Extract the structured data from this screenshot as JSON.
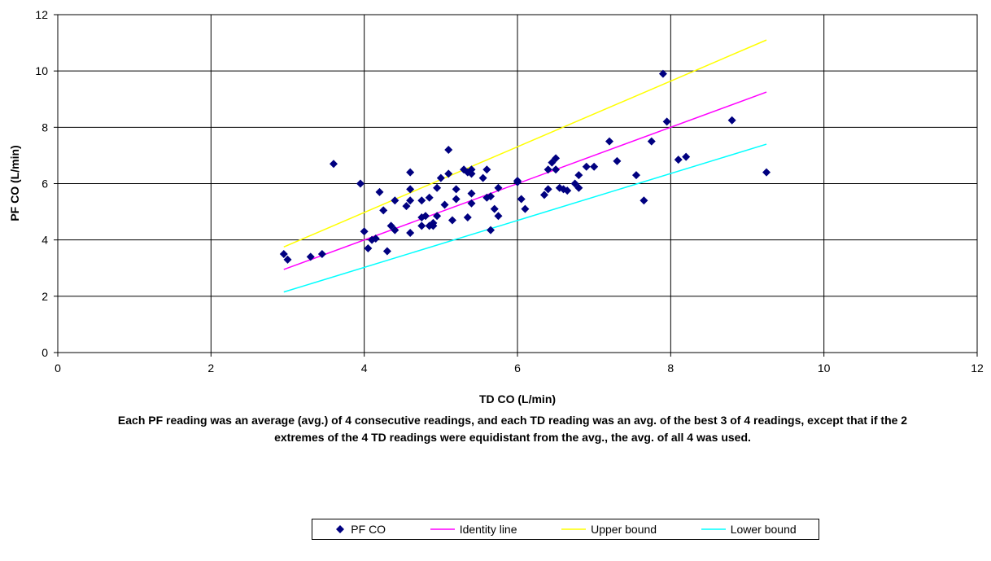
{
  "chart_data": {
    "type": "scatter",
    "title": "",
    "xlabel": "TD CO (L/min)",
    "ylabel": "PF CO (L/min)",
    "xlim": [
      0,
      12
    ],
    "ylim": [
      0,
      12
    ],
    "x_ticks": [
      "0",
      "2",
      "4",
      "6",
      "8",
      "10",
      "12"
    ],
    "y_ticks": [
      "0",
      "2",
      "4",
      "6",
      "8",
      "10",
      "12"
    ],
    "grid": true,
    "legend_position": "bottom",
    "caption": "Each PF reading was an average (avg.) of 4 consecutive readings, and each TD reading was an avg. of the best 3 of 4 readings, except that if the 2 extremes of the 4 TD readings were equidistant from the avg., the avg. of all 4 was used.",
    "series": [
      {
        "name": "PF CO",
        "kind": "scatter",
        "color": "#000080",
        "marker": "diamond",
        "points": [
          [
            2.95,
            3.5
          ],
          [
            3.0,
            3.3
          ],
          [
            3.3,
            3.4
          ],
          [
            3.45,
            3.5
          ],
          [
            3.6,
            6.7
          ],
          [
            3.95,
            6.0
          ],
          [
            4.0,
            4.3
          ],
          [
            4.05,
            3.7
          ],
          [
            4.1,
            4.0
          ],
          [
            4.15,
            4.05
          ],
          [
            4.2,
            5.7
          ],
          [
            4.25,
            5.05
          ],
          [
            4.3,
            3.6
          ],
          [
            4.35,
            4.5
          ],
          [
            4.4,
            5.4
          ],
          [
            4.4,
            4.35
          ],
          [
            4.55,
            5.2
          ],
          [
            4.6,
            6.4
          ],
          [
            4.6,
            5.8
          ],
          [
            4.6,
            5.4
          ],
          [
            4.6,
            4.25
          ],
          [
            4.75,
            5.4
          ],
          [
            4.75,
            4.8
          ],
          [
            4.75,
            4.5
          ],
          [
            4.8,
            4.85
          ],
          [
            4.85,
            5.5
          ],
          [
            4.85,
            4.5
          ],
          [
            4.9,
            4.6
          ],
          [
            4.9,
            4.5
          ],
          [
            4.95,
            4.85
          ],
          [
            4.95,
            5.85
          ],
          [
            5.0,
            6.2
          ],
          [
            5.05,
            5.25
          ],
          [
            5.1,
            7.2
          ],
          [
            5.1,
            6.35
          ],
          [
            5.15,
            4.7
          ],
          [
            5.2,
            5.8
          ],
          [
            5.2,
            5.45
          ],
          [
            5.3,
            6.5
          ],
          [
            5.35,
            4.8
          ],
          [
            5.35,
            6.4
          ],
          [
            5.4,
            6.35
          ],
          [
            5.4,
            5.3
          ],
          [
            5.4,
            6.5
          ],
          [
            5.4,
            5.65
          ],
          [
            5.55,
            6.2
          ],
          [
            5.6,
            6.5
          ],
          [
            5.6,
            5.5
          ],
          [
            5.65,
            5.55
          ],
          [
            5.65,
            4.35
          ],
          [
            5.7,
            5.1
          ],
          [
            5.75,
            4.85
          ],
          [
            5.75,
            5.85
          ],
          [
            6.0,
            6.1
          ],
          [
            6.0,
            6.05
          ],
          [
            6.05,
            5.45
          ],
          [
            6.1,
            5.1
          ],
          [
            6.35,
            5.6
          ],
          [
            6.4,
            6.5
          ],
          [
            6.4,
            5.8
          ],
          [
            6.45,
            6.75
          ],
          [
            6.5,
            6.9
          ],
          [
            6.5,
            6.5
          ],
          [
            6.55,
            5.85
          ],
          [
            6.6,
            5.8
          ],
          [
            6.65,
            5.75
          ],
          [
            6.75,
            6.0
          ],
          [
            6.8,
            5.85
          ],
          [
            6.8,
            6.3
          ],
          [
            6.9,
            6.6
          ],
          [
            7.0,
            6.6
          ],
          [
            7.2,
            7.5
          ],
          [
            7.3,
            6.8
          ],
          [
            7.55,
            6.3
          ],
          [
            7.65,
            5.4
          ],
          [
            7.75,
            7.5
          ],
          [
            7.9,
            9.9
          ],
          [
            7.95,
            8.2
          ],
          [
            8.1,
            6.85
          ],
          [
            8.2,
            6.95
          ],
          [
            8.8,
            8.25
          ],
          [
            9.25,
            6.4
          ]
        ]
      },
      {
        "name": "Identity line",
        "kind": "line",
        "color": "#ff00ff",
        "x": [
          2.95,
          9.25
        ],
        "y": [
          2.95,
          9.25
        ]
      },
      {
        "name": "Upper bound",
        "kind": "line",
        "color": "#ffff00",
        "x": [
          2.95,
          9.25
        ],
        "y": [
          3.75,
          11.1
        ]
      },
      {
        "name": "Lower bound",
        "kind": "line",
        "color": "#00ffff",
        "x": [
          2.95,
          9.25
        ],
        "y": [
          2.15,
          7.4
        ]
      }
    ]
  }
}
